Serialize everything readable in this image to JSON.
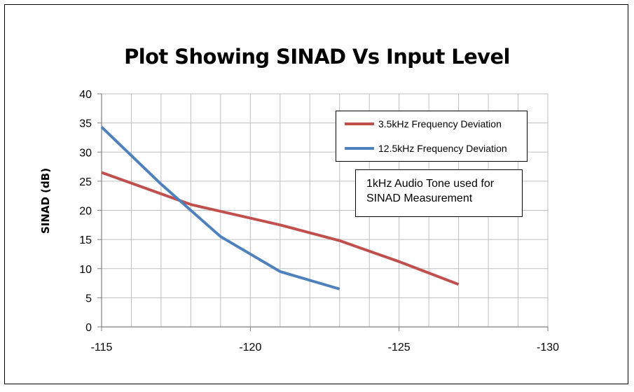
{
  "chart_data": {
    "type": "line",
    "title": "Plot Showing SINAD Vs Input Level",
    "xlabel": "",
    "ylabel": "SINAD (dB)",
    "xlim": [
      -115,
      -130
    ],
    "ylim": [
      0,
      40
    ],
    "xticks": [
      "-115",
      "-120",
      "-125",
      "-130"
    ],
    "yticks": [
      "0",
      "5",
      "10",
      "15",
      "20",
      "25",
      "30",
      "35",
      "40"
    ],
    "grid": true,
    "legend_position": "top-right",
    "series": [
      {
        "name": "3.5kHz Frequency Deviation",
        "color": "#c0504d",
        "points": [
          [
            -115,
            26.5
          ],
          [
            -118,
            21
          ],
          [
            -121,
            17.5
          ],
          [
            -123,
            14.8
          ],
          [
            -125,
            11.2
          ],
          [
            -127,
            7.3
          ]
        ]
      },
      {
        "name": "12.5kHz Frequency Deviation",
        "color": "#4f81bd",
        "points": [
          [
            -115,
            34.3
          ],
          [
            -117,
            24.5
          ],
          [
            -119,
            15.5
          ],
          [
            -121,
            9.5
          ],
          [
            -123,
            6.5
          ]
        ]
      }
    ],
    "annotations": [
      "1kHz Audio Tone used for",
      "SINAD Measurement"
    ]
  }
}
